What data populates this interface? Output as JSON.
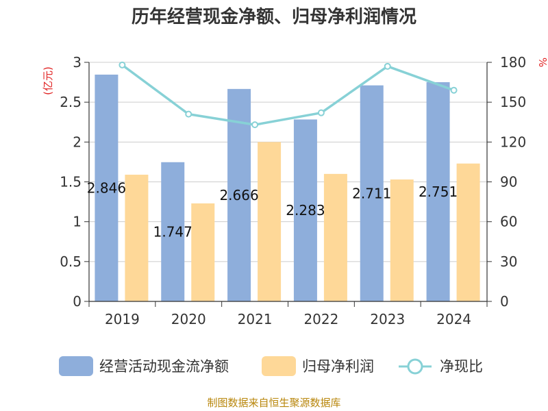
{
  "chart_data": {
    "type": "bar",
    "title": "历年经营现金净额、归母净利润情况",
    "categories": [
      "2019",
      "2020",
      "2021",
      "2022",
      "2023",
      "2024"
    ],
    "series": [
      {
        "name": "经营活动现金流净额",
        "type": "bar",
        "axis": "left",
        "color": "#8eaedb",
        "values": [
          2.846,
          1.747,
          2.666,
          2.283,
          2.711,
          2.751
        ],
        "labels": [
          "2.846",
          "1.747",
          "2.666",
          "2.283",
          "2.711",
          "2.751"
        ]
      },
      {
        "name": "归母净利润",
        "type": "bar",
        "axis": "left",
        "color": "#fed898",
        "values": [
          1.59,
          1.23,
          2.0,
          1.6,
          1.53,
          1.73
        ]
      },
      {
        "name": "净现比",
        "type": "line",
        "axis": "right",
        "color": "#87d1d6",
        "values": [
          178,
          141,
          133,
          142,
          177,
          159
        ]
      }
    ],
    "y_left": {
      "label": "(亿元)",
      "min": 0,
      "max": 3,
      "ticks": [
        "0",
        "0.5",
        "1",
        "1.5",
        "2",
        "2.5",
        "3"
      ],
      "tick_values": [
        0,
        0.5,
        1,
        1.5,
        2,
        2.5,
        3
      ]
    },
    "y_right": {
      "label": "%",
      "min": 0,
      "max": 180,
      "ticks": [
        "0",
        "30",
        "60",
        "90",
        "120",
        "150",
        "180"
      ],
      "tick_values": [
        0,
        30,
        60,
        90,
        120,
        150,
        180
      ]
    },
    "grid": true,
    "legend_position": "bottom"
  },
  "source": "制图数据来自恒生聚源数据库"
}
